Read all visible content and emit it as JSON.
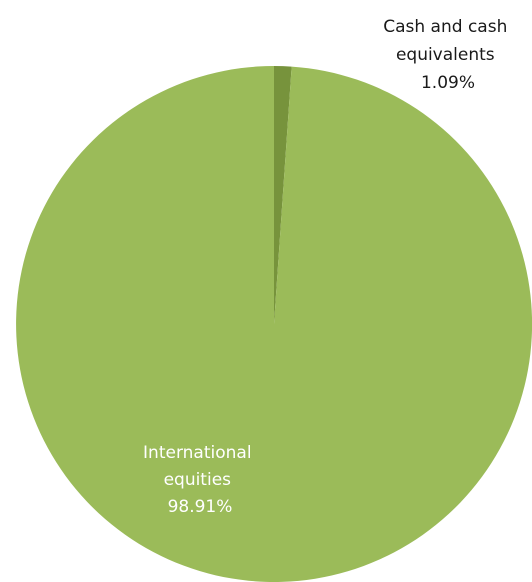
{
  "chart_data": {
    "type": "pie",
    "title": "",
    "slices": [
      {
        "label_lines": [
          "Cash and cash",
          "equivalents"
        ],
        "value_label": "1.09%",
        "value": 1.09,
        "color": "#77933c",
        "label_color": "#1a1a1a"
      },
      {
        "label_lines": [
          "International",
          "equities"
        ],
        "value_label": "98.91%",
        "value": 98.91,
        "color": "#9bbb59",
        "label_color": "#ffffff"
      }
    ],
    "start_angle": "12 o'clock",
    "direction": "clockwise",
    "legend": "none"
  }
}
